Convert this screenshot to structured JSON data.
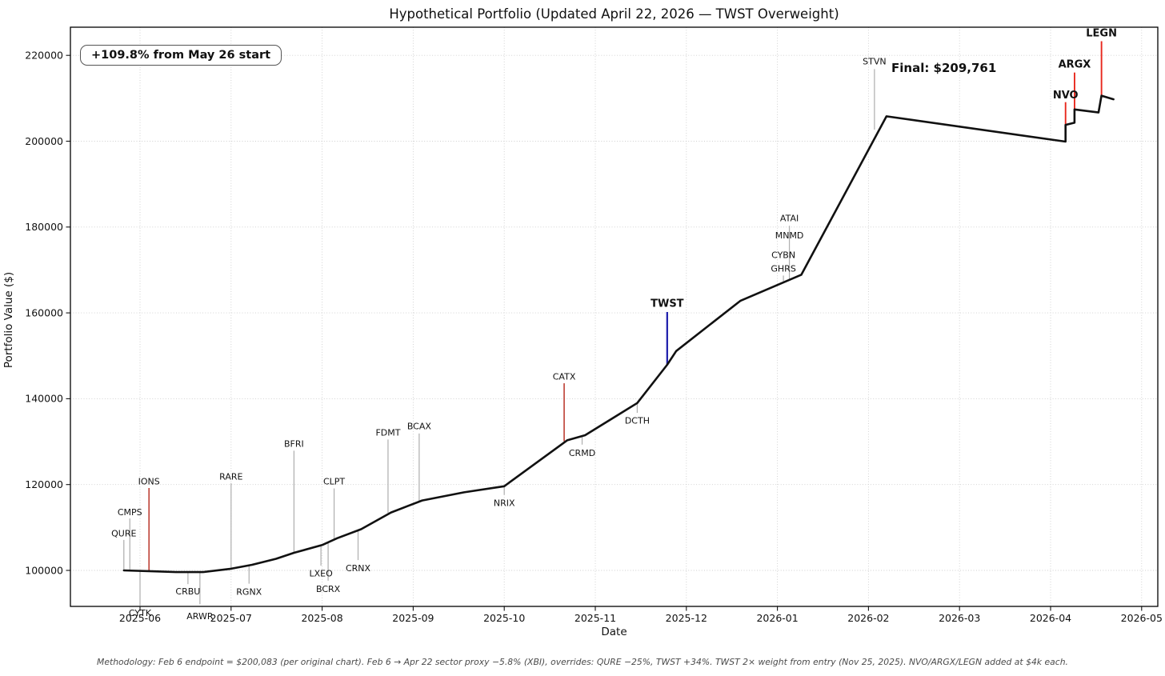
{
  "title": "Hypothetical Portfolio (Updated April 22, 2026 — TWST Overweight)",
  "badge": "+109.8% from May 26 start",
  "final_label": "Final: $209,761",
  "footnote": "Methodology: Feb 6 endpoint = $200,083 (per original chart). Feb 6 → Apr 22 sector proxy −5.8% (XBI), overrides: QURE −25%, TWST +34%. TWST 2× weight from entry (Nov 25, 2025). NVO/ARGX/LEGN added at $4k each.",
  "axis": {
    "xlabel": "Date",
    "ylabel": "Portfolio Value ($)"
  },
  "colors": {
    "series_line": "#111111",
    "entry_red": "#c0483e",
    "add_red": "#e8281e",
    "twst_blue": "#2323ae",
    "anno_gray": "#b0b0b0",
    "grid": "#cdcdcd"
  },
  "chart_data": {
    "type": "line",
    "title": "Hypothetical Portfolio (Updated April 22, 2026 — TWST Overweight)",
    "xlabel": "Date",
    "ylabel": "Portfolio Value ($)",
    "grid": true,
    "legend": "none",
    "xlim": [
      "2025-05-08",
      "2026-05-06"
    ],
    "ylim": [
      91600,
      226500
    ],
    "x_ticks": [
      "2025-06",
      "2025-07",
      "2025-08",
      "2025-09",
      "2025-10",
      "2025-11",
      "2025-12",
      "2026-01",
      "2026-02",
      "2026-03",
      "2026-04",
      "2026-05"
    ],
    "y_ticks": [
      100000,
      120000,
      140000,
      160000,
      180000,
      200000,
      220000
    ],
    "start_value": 100000,
    "final_value": 209761,
    "total_return_pct": 109.8,
    "series": [
      {
        "name": "Hypothetical Portfolio",
        "points": [
          [
            "2025-05-26",
            100000
          ],
          [
            "2025-06-05",
            99800
          ],
          [
            "2025-06-13",
            99600
          ],
          [
            "2025-06-22",
            99600
          ],
          [
            "2025-07-01",
            100400
          ],
          [
            "2025-07-08",
            101300
          ],
          [
            "2025-07-16",
            102700
          ],
          [
            "2025-07-22",
            104100
          ],
          [
            "2025-08-01",
            105900
          ],
          [
            "2025-08-06",
            107500
          ],
          [
            "2025-08-14",
            109600
          ],
          [
            "2025-08-24",
            113500
          ],
          [
            "2025-09-04",
            116300
          ],
          [
            "2025-09-18",
            118200
          ],
          [
            "2025-10-01",
            119600
          ],
          [
            "2025-10-22",
            130300
          ],
          [
            "2025-10-28",
            131500
          ],
          [
            "2025-11-15",
            139000
          ],
          [
            "2025-11-25",
            147900
          ],
          [
            "2025-11-28",
            151100
          ],
          [
            "2025-12-19",
            162800
          ],
          [
            "2026-01-09",
            168900
          ],
          [
            "2026-02-07",
            205800
          ],
          [
            "2026-04-06",
            199900
          ],
          [
            "2026-04-06",
            203800
          ],
          [
            "2026-04-09",
            204300
          ],
          [
            "2026-04-09",
            207400
          ],
          [
            "2026-04-17",
            206700
          ],
          [
            "2026-04-18",
            210600
          ],
          [
            "2026-04-22",
            209761
          ]
        ]
      }
    ],
    "annotations": [
      {
        "ticker": "QURE",
        "date": "2025-05-26",
        "line_from": 100000,
        "line_to": 107100,
        "label_value": 108600,
        "style": "gray",
        "bold": false
      },
      {
        "ticker": "CMPS",
        "date": "2025-05-28",
        "line_from": 100100,
        "line_to": 112100,
        "label_value": 113600,
        "style": "gray",
        "bold": false
      },
      {
        "ticker": "CYTK",
        "date": "2025-06-01",
        "line_from": 99800,
        "line_to": 91700,
        "label_value": 90100,
        "style": "gray",
        "bold": false
      },
      {
        "ticker": "IONS",
        "date": "2025-06-04",
        "line_from": 99800,
        "line_to": 119200,
        "label_value": 120700,
        "style": "entry_red",
        "bold": false
      },
      {
        "ticker": "CRBU",
        "date": "2025-06-17",
        "line_from": 99600,
        "line_to": 96800,
        "label_value": 95100,
        "style": "gray",
        "bold": false
      },
      {
        "ticker": "ARWR",
        "date": "2025-06-21",
        "line_from": 99600,
        "line_to": 92100,
        "label_value": 89300,
        "style": "gray",
        "bold": false
      },
      {
        "ticker": "RARE",
        "date": "2025-07-01",
        "line_from": 100400,
        "line_to": 120300,
        "label_value": 121900,
        "style": "gray",
        "bold": false
      },
      {
        "ticker": "RGNX",
        "date": "2025-07-07",
        "line_from": 101300,
        "line_to": 96900,
        "label_value": 95000,
        "style": "gray",
        "bold": false
      },
      {
        "ticker": "BFRI",
        "date": "2025-07-22",
        "line_from": 104100,
        "line_to": 127900,
        "label_value": 129500,
        "style": "gray",
        "bold": false
      },
      {
        "ticker": "LXEO",
        "date": "2025-07-31",
        "line_from": 105900,
        "line_to": 101100,
        "label_value": 99300,
        "style": "gray",
        "bold": false
      },
      {
        "ticker": "BCRX",
        "date": "2025-08-03",
        "line_from": 106500,
        "line_to": 97600,
        "label_value": 95700,
        "style": "gray",
        "bold": false
      },
      {
        "ticker": "CLPT",
        "date": "2025-08-05",
        "line_from": 107400,
        "line_to": 119100,
        "label_value": 120700,
        "style": "gray",
        "bold": false
      },
      {
        "ticker": "CRNX",
        "date": "2025-08-13",
        "line_from": 109400,
        "line_to": 102400,
        "label_value": 100500,
        "style": "gray",
        "bold": false
      },
      {
        "ticker": "FDMT",
        "date": "2025-08-23",
        "line_from": 113400,
        "line_to": 130500,
        "label_value": 132100,
        "style": "gray",
        "bold": false
      },
      {
        "ticker": "BCAX",
        "date": "2025-09-03",
        "line_from": 116200,
        "line_to": 131900,
        "label_value": 133600,
        "style": "gray",
        "bold": false
      },
      {
        "ticker": "NRIX",
        "date": "2025-10-01",
        "line_from": 119600,
        "line_to": 117600,
        "label_value": 115700,
        "style": "gray",
        "bold": false
      },
      {
        "ticker": "CATX",
        "date": "2025-10-21",
        "line_from": 130100,
        "line_to": 143600,
        "label_value": 145200,
        "style": "entry_red",
        "bold": false
      },
      {
        "ticker": "CRMD",
        "date": "2025-10-27",
        "line_from": 131400,
        "line_to": 129300,
        "label_value": 127400,
        "style": "gray",
        "bold": false
      },
      {
        "ticker": "DCTH",
        "date": "2025-11-15",
        "line_from": 139000,
        "line_to": 136700,
        "label_value": 134900,
        "style": "gray",
        "bold": false
      },
      {
        "ticker": "TWST",
        "date": "2025-11-25",
        "line_from": 147900,
        "line_to": 160200,
        "label_value": 162100,
        "style": "twst_blue",
        "bold": true
      },
      {
        "ticker": "GHRS",
        "date": "2026-01-03",
        "line_from": 167400,
        "line_to": 168700,
        "label_value": 170300,
        "style": "gray",
        "bold": false
      },
      {
        "ticker": "CYBN",
        "date": "2026-01-03",
        "line_from": null,
        "line_to": null,
        "label_value": 173500,
        "style": "gray",
        "bold": false
      },
      {
        "ticker": "MNMD",
        "date": "2026-01-05",
        "line_from": null,
        "line_to": null,
        "label_value": 178100,
        "style": "gray",
        "bold": false
      },
      {
        "ticker": "ATAI",
        "date": "2026-01-05",
        "line_from": 167500,
        "line_to": 180300,
        "label_value": 182100,
        "style": "gray",
        "bold": false
      },
      {
        "ticker": "STVN",
        "date": "2026-02-03",
        "line_from": 202700,
        "line_to": 216800,
        "label_value": 218600,
        "style": "gray",
        "bold": false
      },
      {
        "ticker": "NVO",
        "date": "2026-04-06",
        "line_from": 203800,
        "line_to": 209100,
        "label_value": 210700,
        "style": "add_red",
        "bold": true
      },
      {
        "ticker": "ARGX",
        "date": "2026-04-09",
        "line_from": 207400,
        "line_to": 216000,
        "label_value": 217900,
        "style": "add_red",
        "bold": true
      },
      {
        "ticker": "LEGN",
        "date": "2026-04-18",
        "line_from": 210600,
        "line_to": 223300,
        "label_value": 225100,
        "style": "add_red",
        "bold": true
      }
    ]
  }
}
